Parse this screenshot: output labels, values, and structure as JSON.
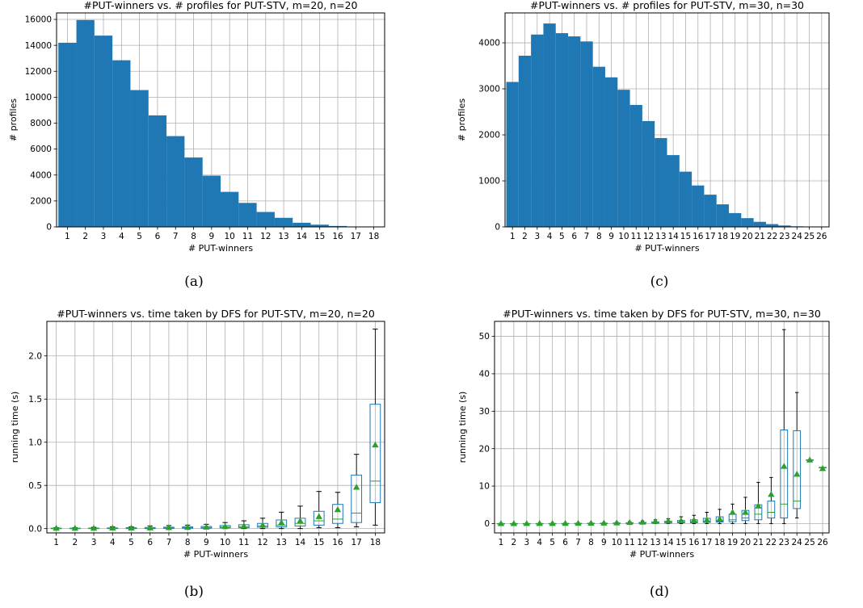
{
  "colors": {
    "bar": "#1f77b4",
    "median": "#2ca02c",
    "mean": "#2ca02c",
    "grid": "#b0b0b0"
  },
  "chart_data": [
    {
      "id": "a",
      "type": "bar",
      "caption": "(a)",
      "title": "#PUT-winners vs. # profiles for PUT-STV, m=20, n=20",
      "xlabel": "# PUT-winners",
      "ylabel": "# profiles",
      "categories": [
        "1",
        "2",
        "3",
        "4",
        "5",
        "6",
        "7",
        "8",
        "9",
        "10",
        "11",
        "12",
        "13",
        "14",
        "15",
        "16",
        "17",
        "18"
      ],
      "values": [
        14200,
        15950,
        14750,
        12850,
        10550,
        8600,
        7000,
        5350,
        3950,
        2700,
        1850,
        1150,
        700,
        320,
        170,
        70,
        20,
        8
      ],
      "yticks": [
        0,
        2000,
        4000,
        6000,
        8000,
        10000,
        12000,
        14000,
        16000
      ],
      "ylim": [
        0,
        16500
      ],
      "grid": true
    },
    {
      "id": "b",
      "type": "box",
      "caption": "(b)",
      "title": "#PUT-winners vs. time taken by DFS for PUT-STV, m=20, n=20",
      "xlabel": "# PUT-winners",
      "ylabel": "running time (s)",
      "categories": [
        "1",
        "2",
        "3",
        "4",
        "5",
        "6",
        "7",
        "8",
        "9",
        "10",
        "11",
        "12",
        "13",
        "14",
        "15",
        "16",
        "17",
        "18"
      ],
      "boxes": [
        {
          "whislo": 0,
          "q1": 0,
          "med": 0,
          "q3": 0.005,
          "whishi": 0.01,
          "mean": 0.005
        },
        {
          "whislo": 0,
          "q1": 0,
          "med": 0,
          "q3": 0.005,
          "whishi": 0.01,
          "mean": 0.005
        },
        {
          "whislo": 0,
          "q1": 0,
          "med": 0.003,
          "q3": 0.006,
          "whishi": 0.015,
          "mean": 0.005
        },
        {
          "whislo": 0,
          "q1": 0,
          "med": 0.004,
          "q3": 0.008,
          "whishi": 0.02,
          "mean": 0.007
        },
        {
          "whislo": 0,
          "q1": 0,
          "med": 0.005,
          "q3": 0.01,
          "whishi": 0.02,
          "mean": 0.008
        },
        {
          "whislo": 0,
          "q1": 0,
          "med": 0.006,
          "q3": 0.012,
          "whishi": 0.03,
          "mean": 0.009
        },
        {
          "whislo": 0,
          "q1": 0.003,
          "med": 0.008,
          "q3": 0.016,
          "whishi": 0.035,
          "mean": 0.012
        },
        {
          "whislo": 0,
          "q1": 0.004,
          "med": 0.01,
          "q3": 0.02,
          "whishi": 0.04,
          "mean": 0.015
        },
        {
          "whislo": 0,
          "q1": 0.005,
          "med": 0.012,
          "q3": 0.025,
          "whishi": 0.05,
          "mean": 0.018
        },
        {
          "whislo": 0,
          "q1": 0.008,
          "med": 0.018,
          "q3": 0.035,
          "whishi": 0.07,
          "mean": 0.025
        },
        {
          "whislo": 0,
          "q1": 0.01,
          "med": 0.022,
          "q3": 0.045,
          "whishi": 0.09,
          "mean": 0.03
        },
        {
          "whislo": 0,
          "q1": 0.015,
          "med": 0.03,
          "q3": 0.06,
          "whishi": 0.12,
          "mean": 0.04
        },
        {
          "whislo": 0,
          "q1": 0.02,
          "med": 0.04,
          "q3": 0.1,
          "whishi": 0.19,
          "mean": 0.07
        },
        {
          "whislo": 0,
          "q1": 0.03,
          "med": 0.06,
          "q3": 0.12,
          "whishi": 0.26,
          "mean": 0.09
        },
        {
          "whislo": 0.01,
          "q1": 0.04,
          "med": 0.09,
          "q3": 0.2,
          "whishi": 0.43,
          "mean": 0.14
        },
        {
          "whislo": 0.01,
          "q1": 0.06,
          "med": 0.11,
          "q3": 0.28,
          "whishi": 0.42,
          "mean": 0.22
        },
        {
          "whislo": 0.02,
          "q1": 0.07,
          "med": 0.18,
          "q3": 0.62,
          "whishi": 0.86,
          "mean": 0.48
        },
        {
          "whislo": 0.04,
          "q1": 0.3,
          "med": 0.55,
          "q3": 1.44,
          "whishi": 2.31,
          "mean": 0.97
        }
      ],
      "yticks": [
        "0.0",
        "0.5",
        "1.0",
        "1.5",
        "2.0"
      ],
      "ylim": [
        -0.05,
        2.4
      ],
      "grid": true
    },
    {
      "id": "c",
      "type": "bar",
      "caption": "(c)",
      "title": "#PUT-winners vs. # profiles for PUT-STV, m=30, n=30",
      "xlabel": "# PUT-winners",
      "ylabel": "# profiles",
      "categories": [
        "1",
        "2",
        "3",
        "4",
        "5",
        "6",
        "7",
        "8",
        "9",
        "10",
        "11",
        "12",
        "13",
        "14",
        "15",
        "16",
        "17",
        "18",
        "19",
        "20",
        "21",
        "22",
        "23",
        "24",
        "25",
        "26"
      ],
      "values": [
        3150,
        3720,
        4180,
        4420,
        4210,
        4140,
        4030,
        3480,
        3250,
        2980,
        2650,
        2300,
        1930,
        1560,
        1200,
        900,
        700,
        490,
        300,
        190,
        110,
        60,
        30,
        12,
        5,
        2
      ],
      "yticks": [
        0,
        1000,
        2000,
        3000,
        4000
      ],
      "ylim": [
        0,
        4650
      ],
      "grid": true
    },
    {
      "id": "d",
      "type": "box",
      "caption": "(d)",
      "title": "#PUT-winners vs. time taken by DFS for PUT-STV, m=30, n=30",
      "xlabel": "# PUT-winners",
      "ylabel": "running time (s)",
      "categories": [
        "1",
        "2",
        "3",
        "4",
        "5",
        "6",
        "7",
        "8",
        "9",
        "10",
        "11",
        "12",
        "13",
        "14",
        "15",
        "16",
        "17",
        "18",
        "19",
        "20",
        "21",
        "22",
        "23",
        "24",
        "25",
        "26"
      ],
      "boxes": [
        {
          "whislo": 0,
          "q1": 0,
          "med": 0,
          "q3": 0,
          "whishi": 0.05,
          "mean": 0.02
        },
        {
          "whislo": 0,
          "q1": 0,
          "med": 0,
          "q3": 0,
          "whishi": 0.05,
          "mean": 0.02
        },
        {
          "whislo": 0,
          "q1": 0,
          "med": 0,
          "q3": 0,
          "whishi": 0.06,
          "mean": 0.03
        },
        {
          "whislo": 0,
          "q1": 0,
          "med": 0,
          "q3": 0.01,
          "whishi": 0.08,
          "mean": 0.04
        },
        {
          "whislo": 0,
          "q1": 0,
          "med": 0,
          "q3": 0.02,
          "whishi": 0.1,
          "mean": 0.05
        },
        {
          "whislo": 0,
          "q1": 0,
          "med": 0.01,
          "q3": 0.03,
          "whishi": 0.12,
          "mean": 0.07
        },
        {
          "whislo": 0,
          "q1": 0,
          "med": 0.02,
          "q3": 0.05,
          "whishi": 0.15,
          "mean": 0.1
        },
        {
          "whislo": 0,
          "q1": 0.01,
          "med": 0.03,
          "q3": 0.07,
          "whishi": 0.2,
          "mean": 0.12
        },
        {
          "whislo": 0,
          "q1": 0.02,
          "med": 0.05,
          "q3": 0.1,
          "whishi": 0.25,
          "mean": 0.15
        },
        {
          "whislo": 0,
          "q1": 0.03,
          "med": 0.07,
          "q3": 0.15,
          "whishi": 0.35,
          "mean": 0.2
        },
        {
          "whislo": 0,
          "q1": 0.05,
          "med": 0.1,
          "q3": 0.2,
          "whishi": 0.5,
          "mean": 0.3
        },
        {
          "whislo": 0,
          "q1": 0.07,
          "med": 0.15,
          "q3": 0.3,
          "whishi": 0.7,
          "mean": 0.4
        },
        {
          "whislo": 0,
          "q1": 0.1,
          "med": 0.2,
          "q3": 0.45,
          "whishi": 1.0,
          "mean": 0.6
        },
        {
          "whislo": 0,
          "q1": 0.15,
          "med": 0.3,
          "q3": 0.6,
          "whishi": 1.3,
          "mean": 0.7
        },
        {
          "whislo": 0,
          "q1": 0.2,
          "med": 0.4,
          "q3": 0.8,
          "whishi": 1.8,
          "mean": 0.8
        },
        {
          "whislo": 0,
          "q1": 0.2,
          "med": 0.5,
          "q3": 1.0,
          "whishi": 2.2,
          "mean": 0.9
        },
        {
          "whislo": 0,
          "q1": 0.3,
          "med": 0.6,
          "q3": 1.4,
          "whishi": 3.0,
          "mean": 1.0
        },
        {
          "whislo": 0,
          "q1": 0.4,
          "med": 0.8,
          "q3": 1.8,
          "whishi": 3.8,
          "mean": 1.2
        },
        {
          "whislo": 0,
          "q1": 0.5,
          "med": 1.0,
          "q3": 2.5,
          "whishi": 5.2,
          "mean": 3.0
        },
        {
          "whislo": 0,
          "q1": 0.8,
          "med": 1.5,
          "q3": 3.5,
          "whishi": 7.0,
          "mean": 3.0
        },
        {
          "whislo": 0,
          "q1": 1.0,
          "med": 2.5,
          "q3": 5.0,
          "whishi": 11.0,
          "mean": 4.7
        },
        {
          "whislo": 0,
          "q1": 1.5,
          "med": 3.0,
          "q3": 6.0,
          "whishi": 12.3,
          "mean": 7.8
        },
        {
          "whislo": 0,
          "q1": 1.5,
          "med": 5.2,
          "q3": 25.0,
          "whishi": 51.8,
          "mean": 15.3
        },
        {
          "whislo": 1.5,
          "q1": 4.0,
          "med": 6.0,
          "q3": 24.8,
          "whishi": 35.0,
          "mean": 13.2
        },
        {
          "whislo": 17.0,
          "q1": 17.0,
          "med": 17.0,
          "q3": 17.0,
          "whishi": 17.0,
          "mean": 17.0
        },
        {
          "whislo": 15.0,
          "q1": 15.0,
          "med": 15.0,
          "q3": 15.0,
          "whishi": 15.0,
          "mean": 14.7
        }
      ],
      "yticks": [
        "0",
        "10",
        "20",
        "30",
        "40",
        "50"
      ],
      "ylim": [
        -2.5,
        54
      ],
      "grid": true
    }
  ]
}
